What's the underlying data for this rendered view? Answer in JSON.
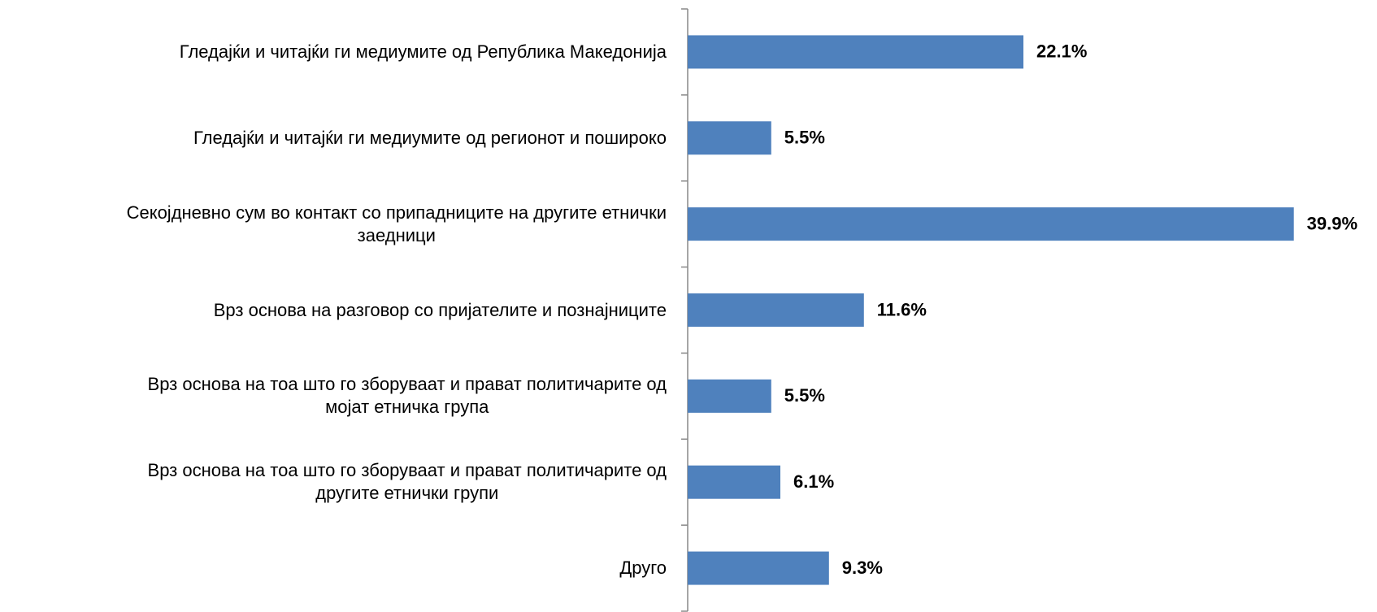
{
  "chart_data": {
    "type": "bar",
    "orientation": "horizontal",
    "categories": [
      "Гледајќи и читајќи ги медиумите од  Република Македонија",
      "Гледајќи и читајќи ги медиумите од регионот и пошироко",
      "Секојдневно сум во контакт со припадниците на другите етнички\nзаедници",
      "Врз основа на разговор со пријателите и познајниците",
      "Врз основа на тоа што го зборуваат и прават политичарите од\nмојат етничка група",
      "Врз основа на тоа што го зборуваат и прават политичарите од\nдругите етнички групи",
      "Друго"
    ],
    "values": [
      22.1,
      5.5,
      39.9,
      11.6,
      5.5,
      6.1,
      9.3
    ],
    "value_labels": [
      "22.1%",
      "5.5%",
      "39.9%",
      "11.6%",
      "5.5%",
      "6.1%",
      "9.3%"
    ],
    "color": "#4f81bd",
    "xlim": [
      0,
      45
    ]
  }
}
